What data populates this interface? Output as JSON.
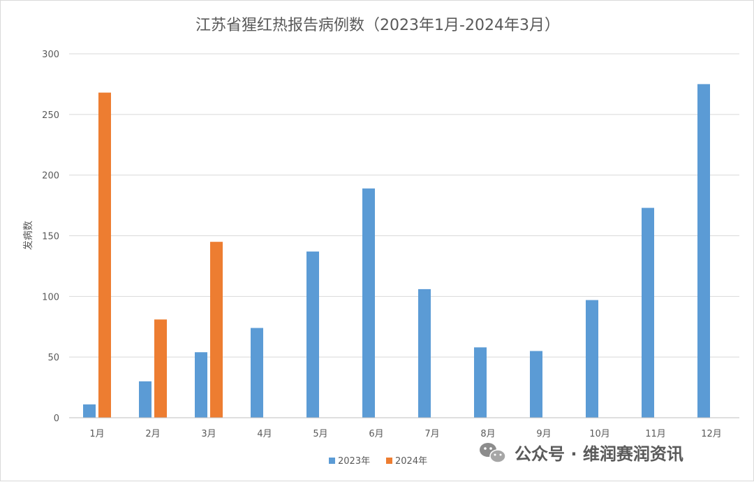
{
  "chart_data": {
    "type": "bar",
    "title": "江苏省猩红热报告病例数（2023年1月-2024年3月）",
    "xlabel": "",
    "ylabel": "发病数",
    "ylim": [
      0,
      300
    ],
    "yticks": [
      "0",
      "50",
      "100",
      "150",
      "200",
      "250",
      "300"
    ],
    "categories": [
      "1月",
      "2月",
      "3月",
      "4月",
      "5月",
      "6月",
      "7月",
      "8月",
      "9月",
      "10月",
      "11月",
      "12月"
    ],
    "series": [
      {
        "name": "2023年",
        "color": "#5b9bd5",
        "values": [
          11,
          30,
          54,
          74,
          137,
          189,
          106,
          58,
          55,
          97,
          173,
          275
        ]
      },
      {
        "name": "2024年",
        "color": "#ed7d31",
        "values": [
          268,
          81,
          145,
          null,
          null,
          null,
          null,
          null,
          null,
          null,
          null,
          null
        ]
      }
    ],
    "grid": true,
    "legend_position": "bottom"
  },
  "watermark": {
    "icon": "wechat-icon",
    "text": "公众号 · 维润赛润资讯"
  }
}
